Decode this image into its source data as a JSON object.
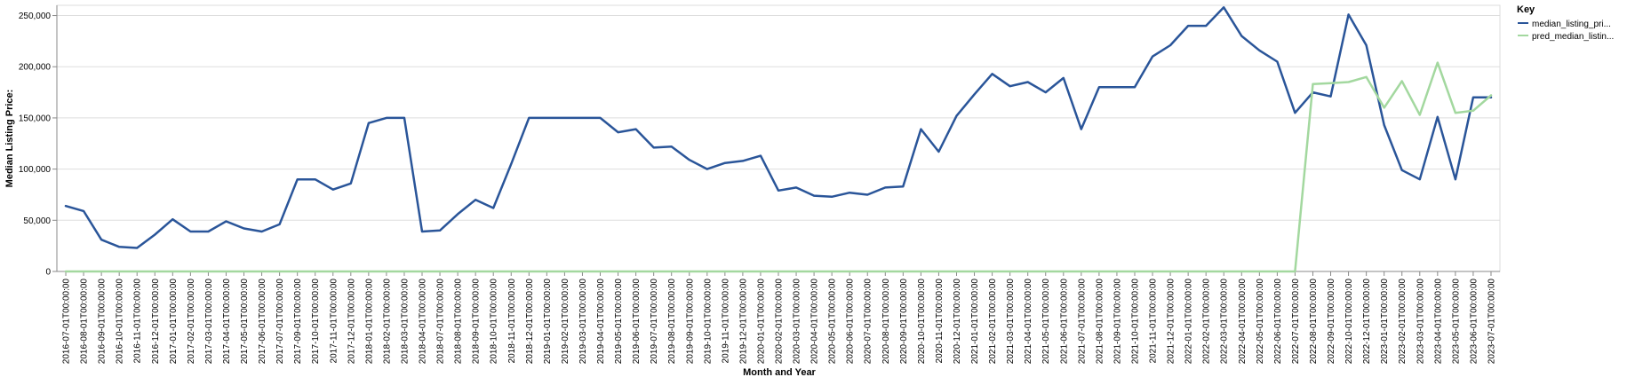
{
  "chart_data": {
    "type": "line",
    "xlabel": "Month and Year",
    "ylabel": "Median Listing Price:",
    "ylim": [
      0,
      260000
    ],
    "yticks": [
      0,
      50000,
      100000,
      150000,
      200000,
      250000
    ],
    "ytick_labels": [
      "0",
      "50,000",
      "100,000",
      "150,000",
      "200,000",
      "250,000"
    ],
    "grid": true,
    "legend": {
      "title": "Key",
      "placement": "top-right"
    },
    "x": [
      "2016-07-01T00:00:00",
      "2016-08-01T00:00:00",
      "2016-09-01T00:00:00",
      "2016-10-01T00:00:00",
      "2016-11-01T00:00:00",
      "2016-12-01T00:00:00",
      "2017-01-01T00:00:00",
      "2017-02-01T00:00:00",
      "2017-03-01T00:00:00",
      "2017-04-01T00:00:00",
      "2017-05-01T00:00:00",
      "2017-06-01T00:00:00",
      "2017-07-01T00:00:00",
      "2017-09-01T00:00:00",
      "2017-10-01T00:00:00",
      "2017-11-01T00:00:00",
      "2017-12-01T00:00:00",
      "2018-01-01T00:00:00",
      "2018-02-01T00:00:00",
      "2018-03-01T00:00:00",
      "2018-04-01T00:00:00",
      "2018-07-01T00:00:00",
      "2018-08-01T00:00:00",
      "2018-09-01T00:00:00",
      "2018-10-01T00:00:00",
      "2018-11-01T00:00:00",
      "2018-12-01T00:00:00",
      "2019-01-01T00:00:00",
      "2019-02-01T00:00:00",
      "2019-03-01T00:00:00",
      "2019-04-01T00:00:00",
      "2019-05-01T00:00:00",
      "2019-06-01T00:00:00",
      "2019-07-01T00:00:00",
      "2019-08-01T00:00:00",
      "2019-09-01T00:00:00",
      "2019-10-01T00:00:00",
      "2019-11-01T00:00:00",
      "2019-12-01T00:00:00",
      "2020-01-01T00:00:00",
      "2020-02-01T00:00:00",
      "2020-03-01T00:00:00",
      "2020-04-01T00:00:00",
      "2020-05-01T00:00:00",
      "2020-06-01T00:00:00",
      "2020-07-01T00:00:00",
      "2020-08-01T00:00:00",
      "2020-09-01T00:00:00",
      "2020-10-01T00:00:00",
      "2020-11-01T00:00:00",
      "2020-12-01T00:00:00",
      "2021-01-01T00:00:00",
      "2021-02-01T00:00:00",
      "2021-03-01T00:00:00",
      "2021-04-01T00:00:00",
      "2021-05-01T00:00:00",
      "2021-06-01T00:00:00",
      "2021-07-01T00:00:00",
      "2021-08-01T00:00:00",
      "2021-09-01T00:00:00",
      "2021-10-01T00:00:00",
      "2021-11-01T00:00:00",
      "2021-12-01T00:00:00",
      "2022-01-01T00:00:00",
      "2022-02-01T00:00:00",
      "2022-03-01T00:00:00",
      "2022-04-01T00:00:00",
      "2022-05-01T00:00:00",
      "2022-06-01T00:00:00",
      "2022-07-01T00:00:00",
      "2022-08-01T00:00:00",
      "2022-09-01T00:00:00",
      "2022-10-01T00:00:00",
      "2022-12-01T00:00:00",
      "2023-01-01T00:00:00",
      "2023-02-01T00:00:00",
      "2023-03-01T00:00:00",
      "2023-04-01T00:00:00",
      "2023-05-01T00:00:00",
      "2023-06-01T00:00:00",
      "2023-07-01T00:00:00"
    ],
    "series": [
      {
        "name": "median_listing_pri...",
        "color": "#2a5599",
        "values": [
          64000,
          59000,
          31000,
          24000,
          23000,
          36000,
          51000,
          39000,
          39000,
          49000,
          42000,
          39000,
          46000,
          90000,
          90000,
          80000,
          86000,
          145000,
          150000,
          150000,
          39000,
          40000,
          56000,
          70000,
          62000,
          105000,
          150000,
          150000,
          150000,
          150000,
          150000,
          136000,
          139000,
          121000,
          122000,
          109000,
          100000,
          106000,
          108000,
          113000,
          79000,
          82000,
          74000,
          73000,
          77000,
          75000,
          82000,
          83000,
          139000,
          117000,
          152000,
          173000,
          193000,
          181000,
          185000,
          175000,
          189000,
          139000,
          180000,
          180000,
          180000,
          210000,
          221000,
          240000,
          240000,
          258000,
          230000,
          216000,
          205000,
          155000,
          175000,
          171000,
          251000,
          221000,
          143000,
          99000,
          90000,
          151000,
          90000,
          170000,
          170000
        ]
      },
      {
        "name": "pred_median_listin...",
        "color": "#a3d89f",
        "values": [
          0,
          0,
          0,
          0,
          0,
          0,
          0,
          0,
          0,
          0,
          0,
          0,
          0,
          0,
          0,
          0,
          0,
          0,
          0,
          0,
          0,
          0,
          0,
          0,
          0,
          0,
          0,
          0,
          0,
          0,
          0,
          0,
          0,
          0,
          0,
          0,
          0,
          0,
          0,
          0,
          0,
          0,
          0,
          0,
          0,
          0,
          0,
          0,
          0,
          0,
          0,
          0,
          0,
          0,
          0,
          0,
          0,
          0,
          0,
          0,
          0,
          0,
          0,
          0,
          0,
          0,
          0,
          0,
          0,
          0,
          183000,
          184000,
          185000,
          190000,
          160000,
          186000,
          153000,
          204000,
          155000,
          157000,
          172000
        ]
      }
    ]
  }
}
